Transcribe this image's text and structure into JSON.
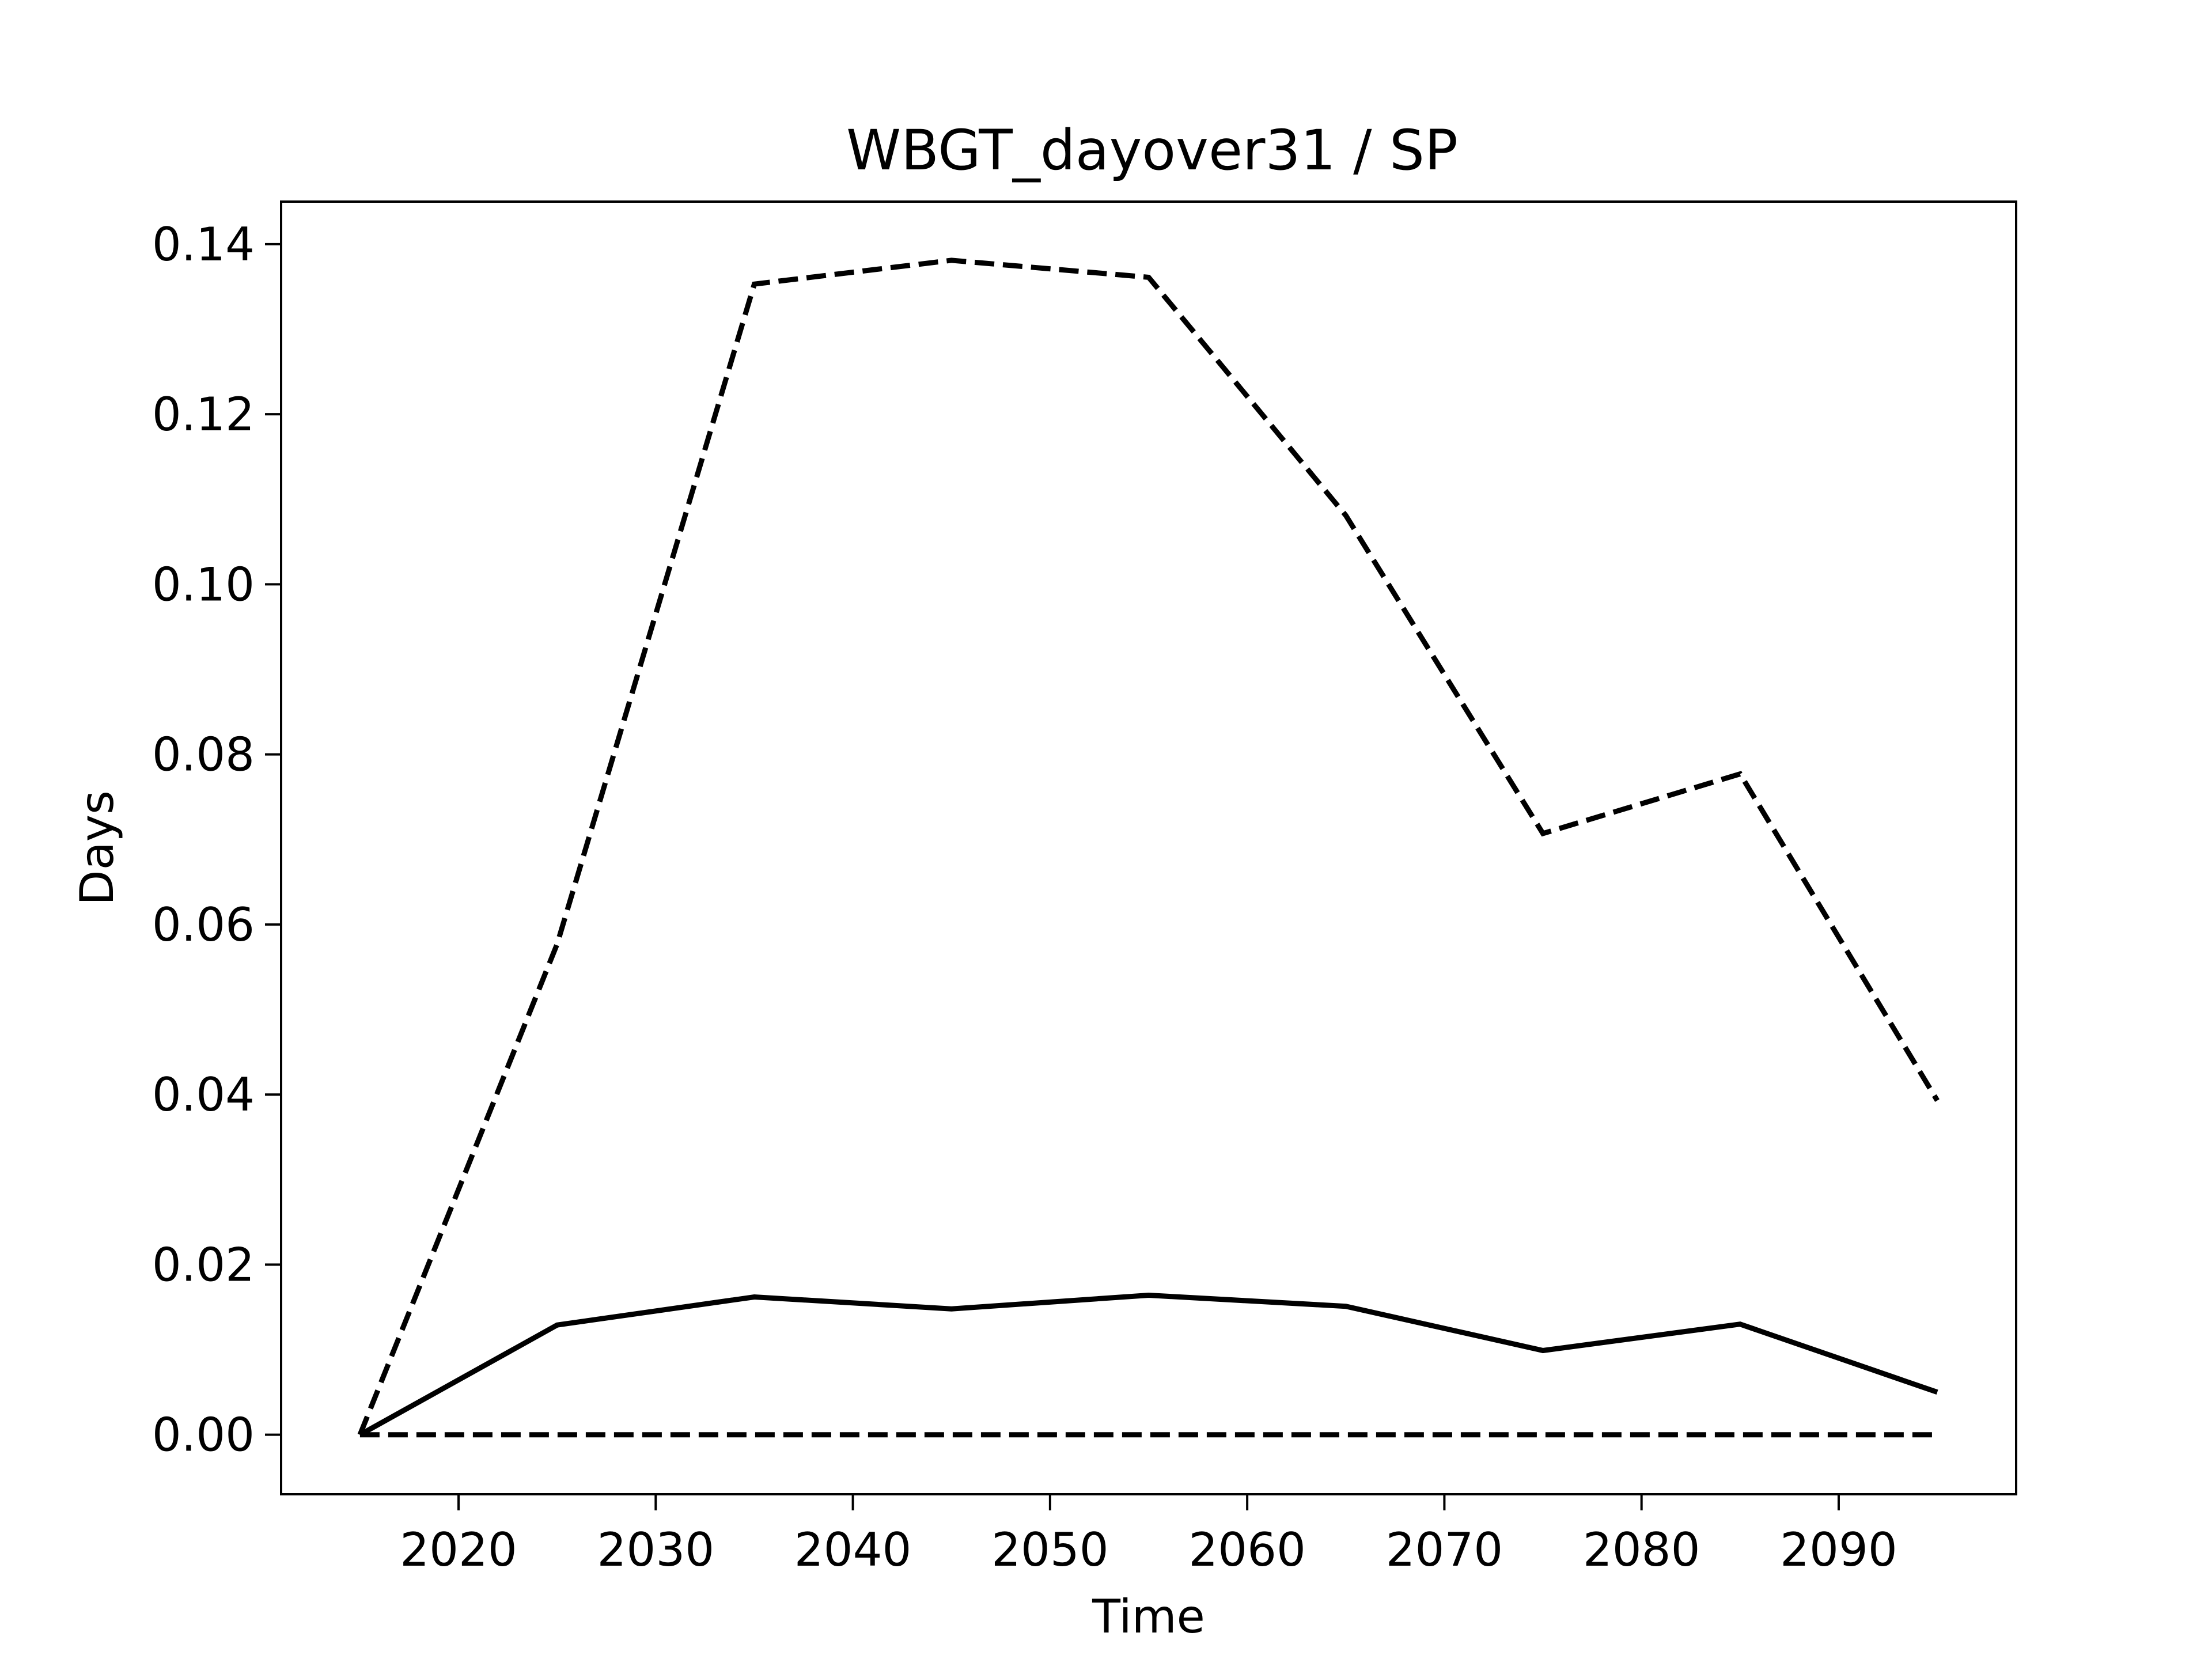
{
  "chart_data": {
    "type": "line",
    "title": "WBGT_dayover31 / SP",
    "xlabel": "Time",
    "ylabel": "Days",
    "xlim": [
      2011,
      2099
    ],
    "ylim": [
      -0.007,
      0.145
    ],
    "xticks": [
      2020,
      2030,
      2040,
      2050,
      2060,
      2070,
      2080,
      2090
    ],
    "yticks": [
      0.0,
      0.02,
      0.04,
      0.06,
      0.08,
      0.1,
      0.12,
      0.14
    ],
    "ytick_labels": [
      "0.00",
      "0.02",
      "0.04",
      "0.06",
      "0.08",
      "0.10",
      "0.12",
      "0.14"
    ],
    "grid": false,
    "line_color": "#000000",
    "x": [
      2015,
      2025,
      2035,
      2045,
      2055,
      2065,
      2075,
      2085,
      2095
    ],
    "series": [
      {
        "style": "dashed",
        "values": [
          0.0,
          0.0577,
          0.1353,
          0.1381,
          0.1361,
          0.1081,
          0.0707,
          0.0777,
          0.0393
        ]
      },
      {
        "style": "solid",
        "values": [
          0.0,
          0.0129,
          0.0162,
          0.0148,
          0.0164,
          0.0151,
          0.0099,
          0.013,
          0.005
        ]
      },
      {
        "style": "dashed",
        "values": [
          0.0,
          0.0,
          0.0,
          0.0,
          0.0,
          0.0,
          0.0,
          0.0,
          0.0
        ]
      }
    ]
  }
}
